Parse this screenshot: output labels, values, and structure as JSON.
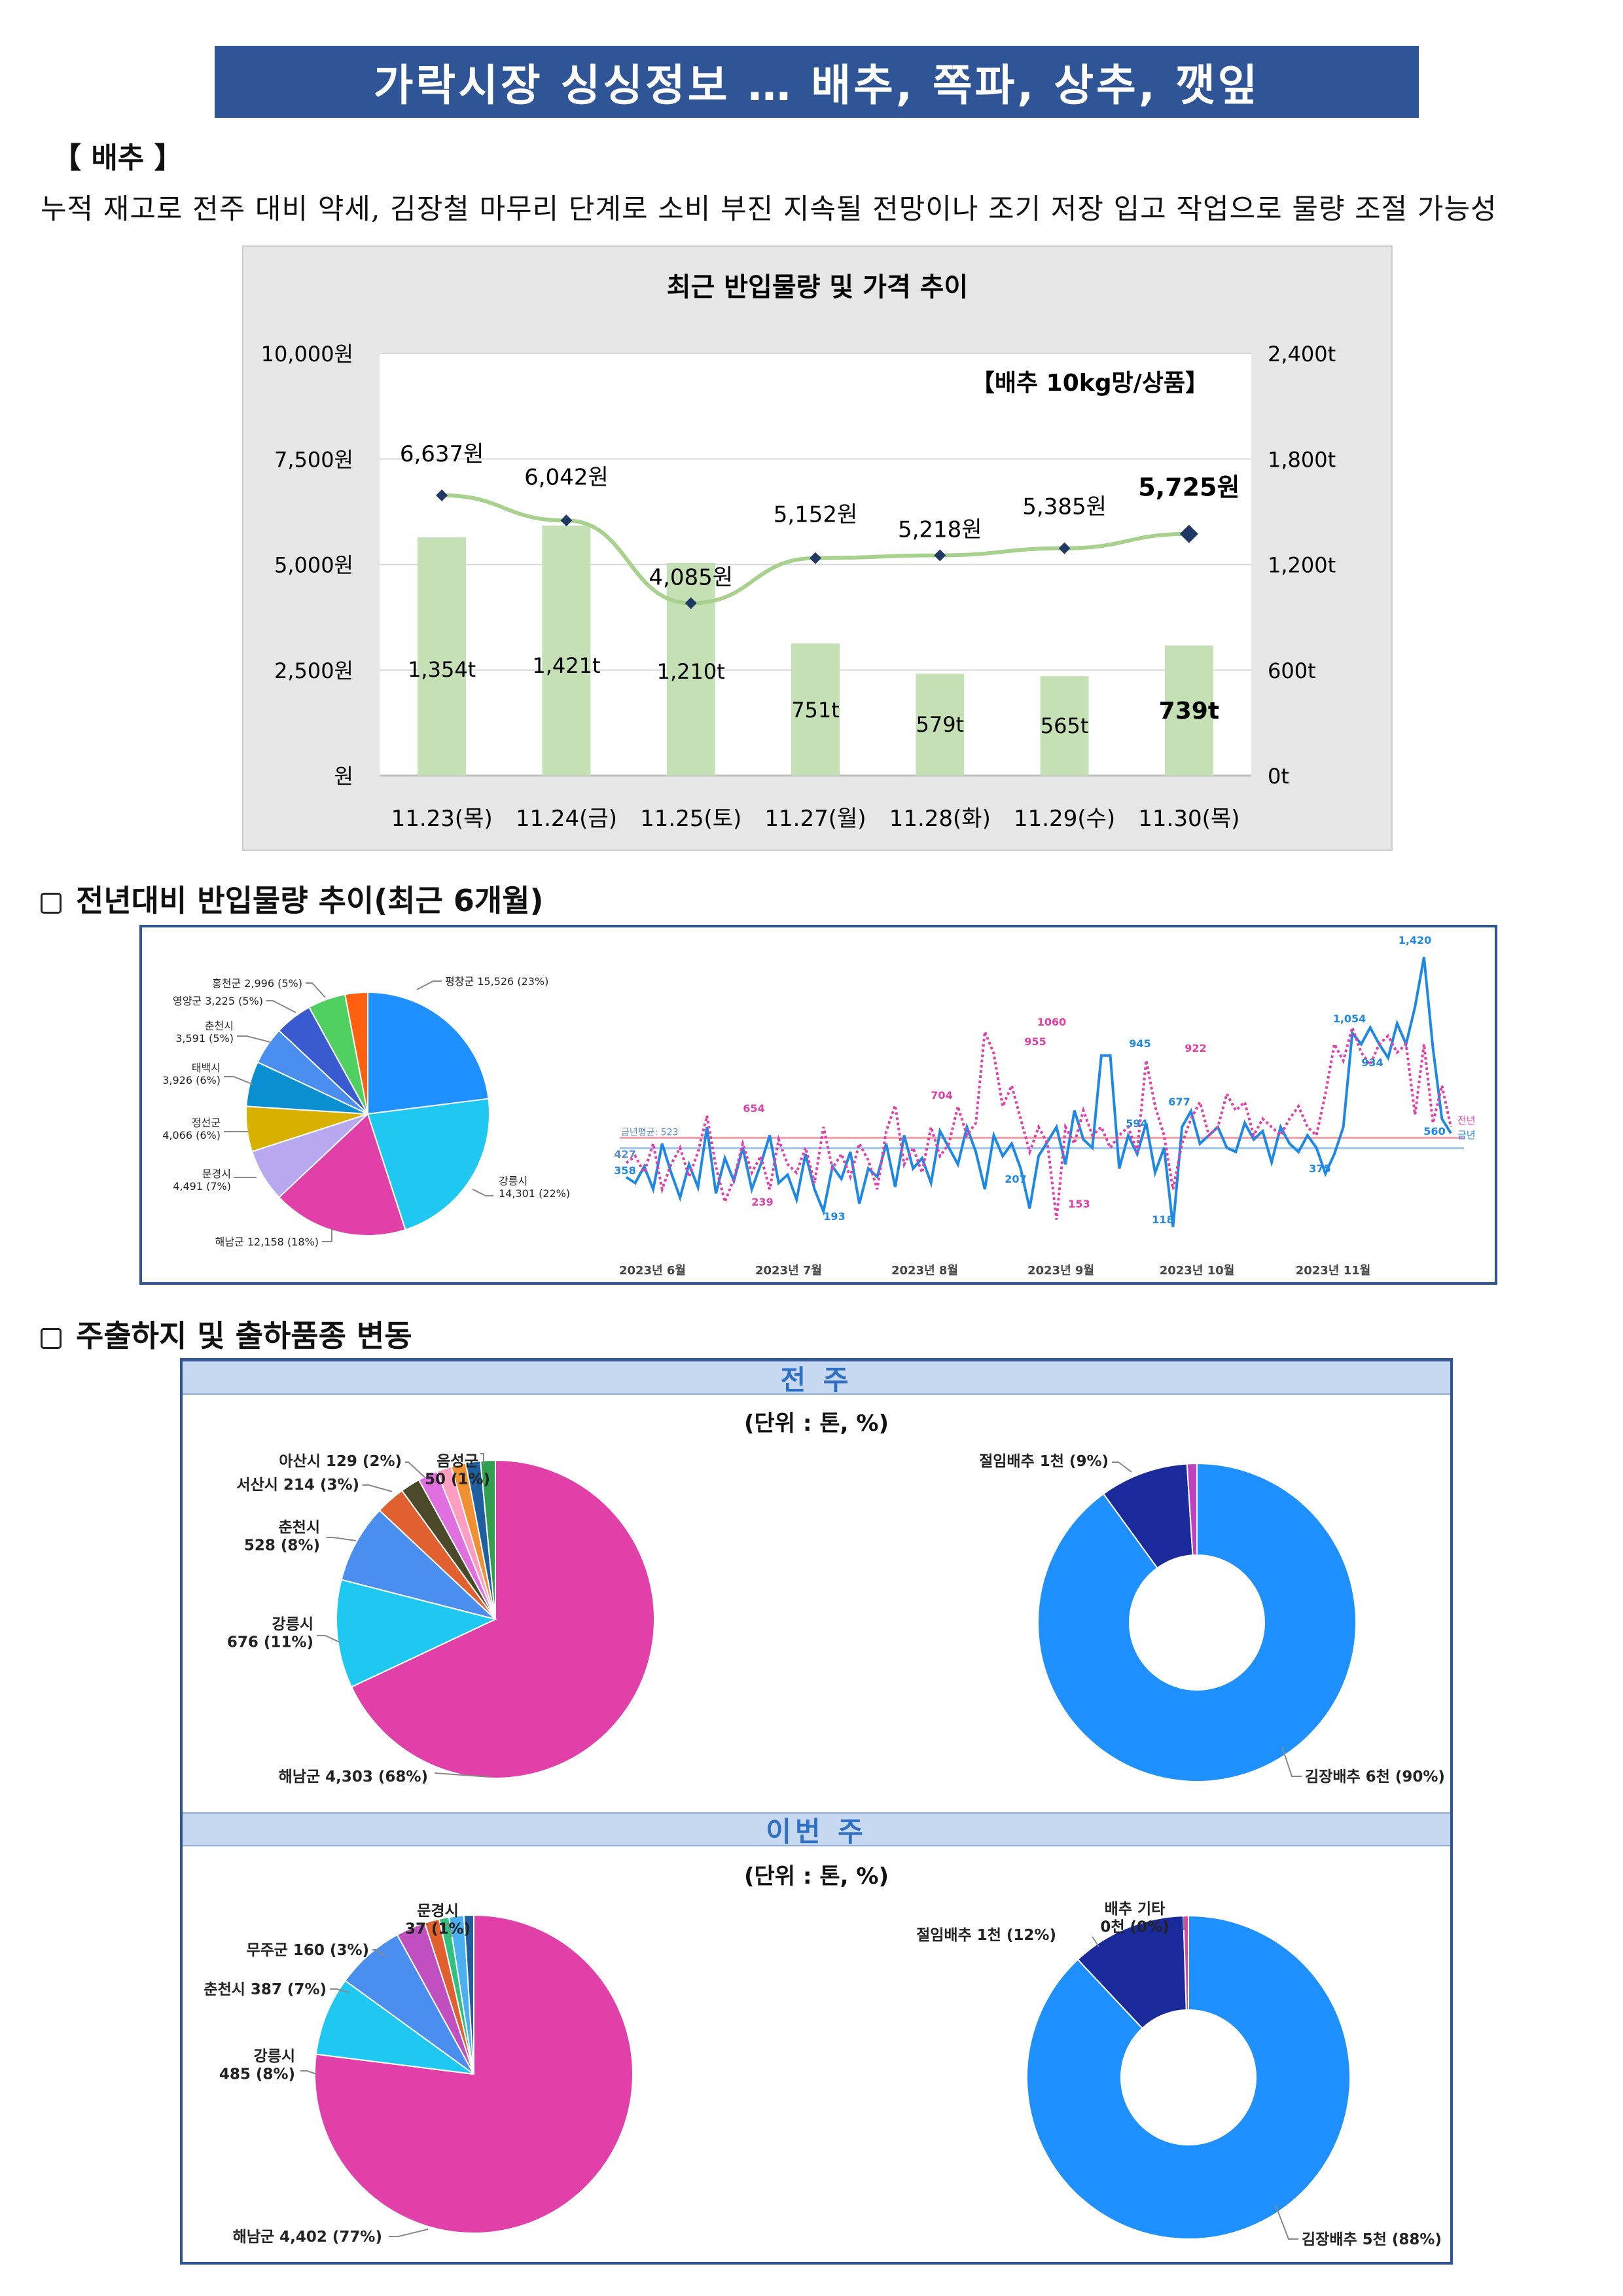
{
  "title": "가락시장 싱싱정보 … 배추, 쪽파, 상추, 깻잎",
  "section": "【 배추 】",
  "summary": "누적 재고로 전주 대비 약세, 김장철 마무리 단계로 소비 부진 지속될 전망이나 조기 저장 입고 작업으로 물량 조절 가능성",
  "subheads": {
    "trend": "전년대비 반입물량 추이(최근 6개월)",
    "origin": "주출하지 및 출하품종 변동"
  },
  "bands": {
    "prev": "전 주",
    "this": "이번 주"
  },
  "unit_note": "(단위 : 톤, %)",
  "chart_data": [
    {
      "type": "bar+line",
      "title": "최근 반입물량 및 가격 추이",
      "annotation": "【배추 10kg망/상품】",
      "categories": [
        "11.23(목)",
        "11.24(금)",
        "11.25(토)",
        "11.27(월)",
        "11.28(화)",
        "11.29(수)",
        "11.30(목)"
      ],
      "series": [
        {
          "values": [
            1354,
            1421,
            1210,
            751,
            579,
            565,
            739
          ],
          "labels": [
            "1,354t",
            "1,421t",
            "1,210t",
            "751t",
            "579t",
            "565t",
            "739t"
          ],
          "color": "#c5e0b4"
        },
        {
          "values": [
            6637,
            6042,
            4085,
            5152,
            5218,
            5385,
            5725
          ],
          "labels": [
            "6,637원",
            "6,042원",
            "4,085원",
            "5,152원",
            "5,218원",
            "5,385원",
            "5,725원"
          ],
          "color": "#a9d18e",
          "marker": "#1f3864"
        }
      ],
      "y_left": {
        "ticks": [
          "원",
          "2,500원",
          "5,000원",
          "7,500원",
          "10,000원"
        ],
        "range": [
          0,
          10000
        ]
      },
      "y_right": {
        "ticks": [
          "0t",
          "600t",
          "1,200t",
          "1,800t",
          "2,400t"
        ],
        "range": [
          0,
          2400
        ]
      }
    },
    {
      "type": "pie",
      "slices": [
        {
          "label": "평창군 15,526 (23%)",
          "value": 23,
          "color": "#1e90ff"
        },
        {
          "label": "강릉시 14,301 (22%)",
          "value": 22,
          "color": "#1ec8f0"
        },
        {
          "label": "해남군 12,158 (18%)",
          "value": 18,
          "color": "#e040a8"
        },
        {
          "label": "문경시 4,491 (7%)",
          "value": 7,
          "color": "#b8a8f0"
        },
        {
          "label": "정선군 4,066 (6%)",
          "value": 6,
          "color": "#d8b000"
        },
        {
          "label": "태백시 3,926 (6%)",
          "value": 6,
          "color": "#0a90d0"
        },
        {
          "label": "춘천시 3,591 (5%)",
          "value": 5,
          "color": "#4a8ff0"
        },
        {
          "label": "영양군 3,225 (5%)",
          "value": 5,
          "color": "#3a5ad0"
        },
        {
          "label": "홍천군 2,996 (5%)",
          "value": 5,
          "color": "#50d060"
        },
        {
          "label": "",
          "value": 3,
          "color": "#ff6010"
        }
      ]
    },
    {
      "type": "line",
      "x_ticks": [
        "2023년 6월",
        "2023년 7월",
        "2023년 8월",
        "2023년 9월",
        "2023년 10월",
        "2023년 11월"
      ],
      "series": [
        {
          "name": "금년",
          "color": "#1e88e5",
          "values": [
            358,
            330,
            410,
            300,
            520,
            380,
            260,
            420,
            310,
            600,
            280,
            450,
            340,
            500,
            300,
            420,
            560,
            330,
            370,
            250,
            470,
            300,
            193,
            410,
            350,
            480,
            230,
            400,
            360,
            520,
            310,
            560,
            400,
            450,
            330,
            580,
            500,
            420,
            600,
            480,
            300,
            560,
            460,
            520,
            400,
            207,
            460,
            530,
            600,
            420,
            680,
            540,
            500,
            945,
            945,
            400,
            560,
            470,
            620,
            380,
            500,
            118,
            600,
            677,
            520,
            560,
            600,
            500,
            480,
            620,
            540,
            580,
            430,
            600,
            520,
            480,
            560,
            500,
            375,
            470,
            600,
            1054,
            1000,
            1080,
            1000,
            934,
            1100,
            1000,
            1180,
            1420,
            980,
            640,
            570
          ]
        },
        {
          "name": "전년",
          "color": "#e040a8",
          "values": [
            427,
            460,
            380,
            520,
            300,
            420,
            500,
            360,
            480,
            654,
            410,
            239,
            350,
            520,
            380,
            460,
            300,
            540,
            420,
            380,
            500,
            330,
            600,
            400,
            470,
            360,
            520,
            440,
            300,
            580,
            704,
            420,
            500,
            380,
            600,
            460,
            520,
            700,
            560,
            620,
            1060,
            955,
            700,
            800,
            640,
            480,
            600,
            520,
            153,
            600,
            520,
            680,
            560,
            600,
            500,
            560,
            600,
            480,
            922,
            700,
            560,
            300,
            520,
            640,
            720,
            560,
            600,
            760,
            680,
            720,
            560,
            640,
            600,
            560,
            640,
            700,
            600,
            560,
            760,
            1000,
            920,
            1080,
            960,
            900,
            1000,
            1040,
            960,
            1000,
            660,
            1000,
            620,
            800,
            600
          ]
        }
      ],
      "annotations": [
        "1,420",
        "1,054",
        "945",
        "922",
        "1060",
        "955",
        "704",
        "654",
        "677",
        "594",
        "934",
        "358",
        "427",
        "375",
        "193",
        "239",
        "153",
        "118",
        "207",
        "560"
      ],
      "reference_label": "금년평균: 523",
      "end_labels": [
        "전년",
        "금년"
      ]
    },
    {
      "type": "pie",
      "caption": "전 주",
      "slices": [
        {
          "label": "해남군 4,303 (68%)",
          "value": 68,
          "color": "#e040a8"
        },
        {
          "label": "강릉시 676 (11%)",
          "value": 11,
          "color": "#1ec8f0"
        },
        {
          "label": "춘천시 528 (8%)",
          "value": 8,
          "color": "#4a8ff0"
        },
        {
          "label": "서산시 214 (3%)",
          "value": 3,
          "color": "#e06030"
        },
        {
          "label": "",
          "value": 2,
          "color": "#4a4a2a"
        },
        {
          "label": "아산시 129 (2%)",
          "value": 2,
          "color": "#e070e0"
        },
        {
          "label": "",
          "value": 1.5,
          "color": "#ff9ec0"
        },
        {
          "label": "",
          "value": 1.5,
          "color": "#f09030"
        },
        {
          "label": "음성군 50 (1%)",
          "value": 1.5,
          "color": "#1f5f9f"
        },
        {
          "label": "",
          "value": 1.5,
          "color": "#30a050"
        }
      ]
    },
    {
      "type": "donut",
      "caption": "전 주",
      "slices": [
        {
          "label": "김장배추 6천 (90%)",
          "value": 90,
          "color": "#1e90ff"
        },
        {
          "label": "절임배추 1천 (9%)",
          "value": 9,
          "color": "#1a2a9a"
        },
        {
          "label": "",
          "value": 1,
          "color": "#c040c0"
        }
      ]
    },
    {
      "type": "pie",
      "caption": "이번 주",
      "slices": [
        {
          "label": "해남군 4,402 (77%)",
          "value": 77,
          "color": "#e040a8"
        },
        {
          "label": "강릉시 485 (8%)",
          "value": 8,
          "color": "#1ec8f0"
        },
        {
          "label": "춘천시 387 (7%)",
          "value": 7,
          "color": "#4a8ff0"
        },
        {
          "label": "무주군 160 (3%)",
          "value": 3,
          "color": "#c050c0"
        },
        {
          "label": "",
          "value": 1.5,
          "color": "#e06030"
        },
        {
          "label": "문경시 37 (1%)",
          "value": 1,
          "color": "#30c080"
        },
        {
          "label": "",
          "value": 1.5,
          "color": "#4ab0f0"
        },
        {
          "label": "",
          "value": 1,
          "color": "#1f5f9f"
        }
      ]
    },
    {
      "type": "donut",
      "caption": "이번 주",
      "slices": [
        {
          "label": "김장배추 5천 (88%)",
          "value": 88,
          "color": "#1e90ff"
        },
        {
          "label": "절임배추 1천 (12%)",
          "value": 11.5,
          "color": "#1a2a9a"
        },
        {
          "label": "배추 기타 0천 (0%)",
          "value": 0.5,
          "color": "#e040a8"
        }
      ]
    }
  ]
}
